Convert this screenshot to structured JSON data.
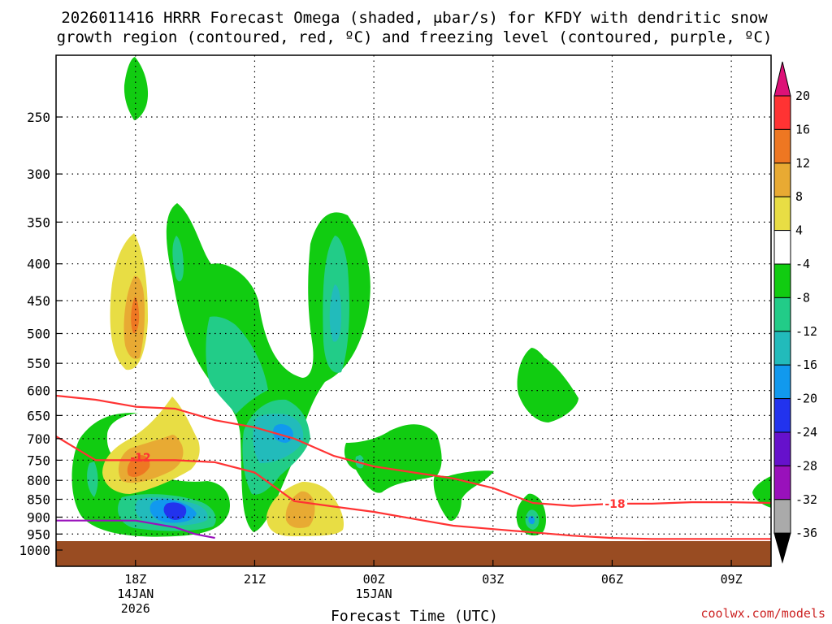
{
  "title_line1": "2026011416 HRRR Forecast Omega (shaded, μbar/s) for KFDY with dendritic snow",
  "title_line2": "growth region (contoured, red, ºC) and freezing level (contoured, purple, ºC)",
  "credit": "coolwx.com/models",
  "chart_data": {
    "type": "contour",
    "title": "2026011416 HRRR Forecast Omega (shaded, μbar/s) for KFDY with dendritic snow growth region (contoured, red, ºC) and freezing level (contoured, purple, ºC)",
    "xlabel": "Forecast Time (UTC)",
    "ylabel": "",
    "x_ticks": [
      {
        "label": "18Z",
        "sub": [
          "14JAN",
          "2026"
        ],
        "hours": 2
      },
      {
        "label": "21Z",
        "sub": [],
        "hours": 5
      },
      {
        "label": "00Z",
        "sub": [
          "15JAN"
        ],
        "hours": 8
      },
      {
        "label": "03Z",
        "sub": [],
        "hours": 11
      },
      {
        "label": "06Z",
        "sub": [],
        "hours": 14
      },
      {
        "label": "09Z",
        "sub": [],
        "hours": 17
      }
    ],
    "x_range_hours": [
      0,
      18
    ],
    "y_ticks": [
      250,
      300,
      350,
      400,
      450,
      500,
      550,
      600,
      650,
      700,
      750,
      800,
      850,
      900,
      950,
      1000
    ],
    "y_range_hPa": [
      200,
      1000
    ],
    "y_scale": "log-pressure",
    "grid": "dotted",
    "surface_color": "#994c22",
    "colorbar": {
      "ticks": [
        "20",
        "16",
        "12",
        "8",
        "4",
        "-4",
        "-8",
        "-12",
        "-16",
        "-20",
        "-24",
        "-28",
        "-32",
        "-36"
      ],
      "colors": [
        "#ff3333",
        "#ee7722",
        "#e8aa33",
        "#e8dd44",
        "#ffffff",
        "#11cc11",
        "#22cc88",
        "#22bbbb",
        "#1199ee",
        "#2233ee",
        "#6611cc",
        "#9911bb",
        "#aaaaaa"
      ],
      "top_color": "#dd1177",
      "bottom_color": "#000000"
    },
    "contour_labels": [
      "-12",
      "-18"
    ],
    "omega_regions": [
      {
        "value": -4,
        "color": "#11cc11"
      },
      {
        "value": -8,
        "color": "#22cc88"
      },
      {
        "value": -12,
        "color": "#22bbbb"
      },
      {
        "value": -16,
        "color": "#1199ee"
      },
      {
        "value": -20,
        "color": "#2233ee"
      },
      {
        "value": 4,
        "color": "#e8dd44"
      },
      {
        "value": 8,
        "color": "#e8aa33"
      },
      {
        "value": 12,
        "color": "#ee7722"
      }
    ],
    "series": [
      {
        "name": "-12",
        "color": "#ff3333",
        "hours": [
          0,
          1,
          2,
          3,
          4,
          5,
          6,
          7,
          8,
          9,
          10,
          11,
          12,
          13,
          14,
          15,
          16,
          17,
          18
        ],
        "hPa": [
          695,
          750,
          750,
          750,
          755,
          780,
          855,
          870,
          885,
          905,
          925,
          935,
          945,
          955,
          962,
          965,
          965,
          965,
          965
        ]
      },
      {
        "name": "-18",
        "color": "#ff3333",
        "hours": [
          0,
          1,
          2,
          3,
          4,
          5,
          6,
          7,
          8,
          9,
          10,
          11,
          12,
          13,
          14,
          15,
          16,
          17,
          18
        ],
        "hPa": [
          610,
          618,
          632,
          636,
          660,
          675,
          700,
          740,
          765,
          780,
          795,
          820,
          860,
          868,
          862,
          862,
          858,
          858,
          860
        ]
      },
      {
        "color": "#9911bb",
        "hours": [
          0,
          1,
          2,
          3,
          3.5,
          4
        ],
        "hPa": [
          910,
          910,
          910,
          930,
          950,
          962
        ]
      }
    ]
  }
}
